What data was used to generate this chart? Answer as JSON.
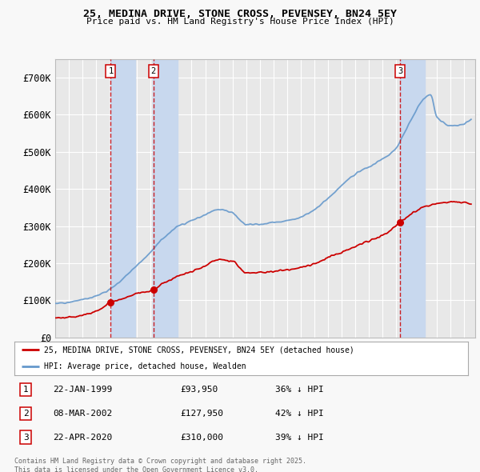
{
  "title": "25, MEDINA DRIVE, STONE CROSS, PEVENSEY, BN24 5EY",
  "subtitle": "Price paid vs. HM Land Registry's House Price Index (HPI)",
  "ylim": [
    0,
    750000
  ],
  "yticks": [
    0,
    100000,
    200000,
    300000,
    400000,
    500000,
    600000,
    700000
  ],
  "ytick_labels": [
    "£0",
    "£100K",
    "£200K",
    "£300K",
    "£400K",
    "£500K",
    "£600K",
    "£700K"
  ],
  "background_color": "#f8f8f8",
  "plot_bg_color": "#e8e8e8",
  "grid_color": "#ffffff",
  "transactions": [
    {
      "label": "1",
      "date_num": 1999.07,
      "price": 93950,
      "date_str": "22-JAN-1999",
      "pct": "36%",
      "dir": "↓"
    },
    {
      "label": "2",
      "date_num": 2002.19,
      "price": 127950,
      "date_str": "08-MAR-2002",
      "pct": "42%",
      "dir": "↓"
    },
    {
      "label": "3",
      "date_num": 2020.31,
      "price": 310000,
      "date_str": "22-APR-2020",
      "pct": "39%",
      "dir": "↓"
    }
  ],
  "legend_line1": "25, MEDINA DRIVE, STONE CROSS, PEVENSEY, BN24 5EY (detached house)",
  "legend_line2": "HPI: Average price, detached house, Wealden",
  "footnote": "Contains HM Land Registry data © Crown copyright and database right 2025.\nThis data is licensed under the Open Government Licence v3.0.",
  "line_color_red": "#cc0000",
  "line_color_blue": "#6699cc",
  "shade_color": "#c8d8ee",
  "marker_box_color": "#cc0000",
  "hpi_knots_x": [
    1995,
    1996,
    1997,
    1998,
    1999,
    2000,
    2001,
    2002,
    2003,
    2004,
    2005,
    2006,
    2007,
    2008,
    2009,
    2010,
    2011,
    2012,
    2013,
    2014,
    2015,
    2016,
    2017,
    2018,
    2019,
    2020,
    2021,
    2022,
    2022.5,
    2023,
    2024,
    2025.5
  ],
  "hpi_knots_y": [
    92000,
    96000,
    102000,
    112000,
    130000,
    160000,
    195000,
    230000,
    270000,
    300000,
    315000,
    330000,
    345000,
    335000,
    305000,
    305000,
    310000,
    315000,
    325000,
    345000,
    375000,
    410000,
    440000,
    460000,
    480000,
    510000,
    580000,
    640000,
    655000,
    595000,
    570000,
    590000
  ],
  "red_knots_x": [
    1995,
    1996,
    1997,
    1998,
    1999.07,
    2000,
    2001,
    2002.19,
    2003,
    2004,
    2005,
    2006,
    2007,
    2008,
    2009,
    2010,
    2011,
    2012,
    2013,
    2014,
    2015,
    2016,
    2017,
    2018,
    2019,
    2020.31,
    2021,
    2022,
    2023,
    2024,
    2025.5
  ],
  "red_knots_y": [
    52000,
    55000,
    60000,
    70000,
    93950,
    105000,
    118000,
    127950,
    148000,
    165000,
    178000,
    193000,
    210000,
    205000,
    175000,
    175000,
    178000,
    182000,
    188000,
    198000,
    215000,
    230000,
    245000,
    260000,
    275000,
    310000,
    330000,
    350000,
    360000,
    365000,
    360000
  ]
}
